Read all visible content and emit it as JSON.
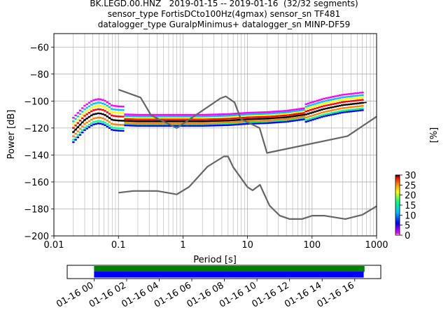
{
  "title_lines": [
    "BK.LEGD.00.HNZ   2019-01-15 -- 2019-01-16  (32/32 segments)",
    "sensor_type FortisDCto100Hz(4gmax) sensor_sn TF481",
    "datalogger_type GuralpMinimus+ datalogger_sn MINP-DF59"
  ],
  "chart_data": [
    {
      "type": "heatmap",
      "xlabel": "Period [s]",
      "ylabel": "Power [dB]",
      "x_scale": "log",
      "xlim": [
        0.01,
        1000
      ],
      "ylim": [
        -200,
        -50
      ],
      "x_ticks": [
        "0.01",
        "0.1",
        "1",
        "10",
        "100",
        "1000"
      ],
      "y_ticks": [
        "-60",
        "-80",
        "-100",
        "-120",
        "-140",
        "-160",
        "-180",
        "-200"
      ],
      "grid": true,
      "colorbar": {
        "label": "[%]",
        "range": [
          0,
          30
        ],
        "ticks": [
          "0",
          "5",
          "10",
          "15",
          "20",
          "25",
          "30"
        ],
        "colormap": [
          "#ffffff",
          "#ff00ff",
          "#0000ff",
          "#00bfff",
          "#00ff80",
          "#ffff00",
          "#ff8000",
          "#ff0000",
          "#000000"
        ]
      },
      "series": [
        {
          "role": "mean_psd",
          "color": "#000000",
          "x": [
            0.02,
            0.025,
            0.03,
            0.04,
            0.05,
            0.06,
            0.07,
            0.08,
            0.1,
            0.2,
            0.5,
            1,
            2,
            5,
            10,
            20,
            40,
            80,
            150,
            300,
            700
          ],
          "y": [
            -123,
            -118,
            -114,
            -110,
            -109,
            -110,
            -112,
            -114,
            -114.5,
            -115,
            -115,
            -115,
            -115,
            -114.5,
            -113.5,
            -113,
            -112,
            -110,
            -106,
            -103,
            -101
          ]
        },
        {
          "role": "new_high_noise_model",
          "color": "#666666",
          "x": [
            0.1,
            0.22,
            0.32,
            0.8,
            3.8,
            4.6,
            6.3,
            7.9,
            15.4,
            20,
            354.8,
            1000
          ],
          "y": [
            -91.5,
            -97.4,
            -110.5,
            -120,
            -98,
            -96.5,
            -101,
            -113.5,
            -120,
            -138.5,
            -126,
            -111.5
          ]
        },
        {
          "role": "new_low_noise_model",
          "color": "#666666",
          "x": [
            0.1,
            0.17,
            0.4,
            0.8,
            1.24,
            2.4,
            4.3,
            5,
            6,
            10,
            12,
            15.6,
            21.9,
            31.6,
            45,
            70,
            101,
            154,
            328,
            600,
            1000
          ],
          "y": [
            -168,
            -166.7,
            -166.7,
            -169.2,
            -163.7,
            -148.6,
            -141.1,
            -141.1,
            -149,
            -163.8,
            -166.2,
            -162.1,
            -177.5,
            -185,
            -187.5,
            -187.5,
            -185,
            -185,
            -187.5,
            -184.4,
            -178
          ]
        }
      ]
    },
    {
      "type": "bar",
      "xlabel": "",
      "x_ticks": [
        "01-16 00",
        "01-16 02",
        "01-16 04",
        "01-16 06",
        "01-16 08",
        "01-16 10",
        "01-16 12",
        "01-16 14",
        "01-16 16"
      ],
      "xlim_hours": [
        -1.65,
        17.6
      ],
      "bars": [
        {
          "role": "data_available",
          "color": "#008000",
          "start_hour": 0,
          "end_hour": 16.6
        },
        {
          "role": "psd_used",
          "color": "#0000ff",
          "start_hour": 0,
          "end_hour": 16.55
        }
      ]
    }
  ]
}
